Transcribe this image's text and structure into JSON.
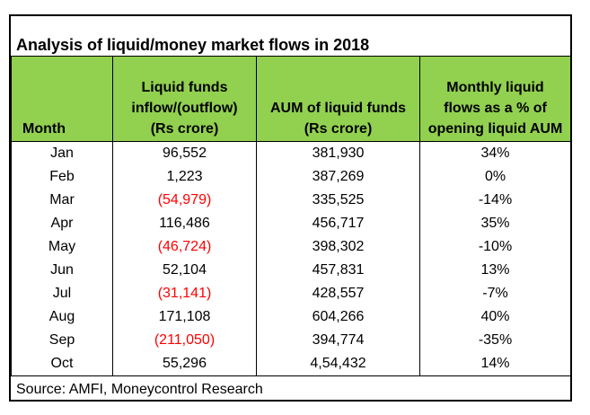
{
  "title": "Analysis of liquid/money market flows in 2018",
  "headers": {
    "month": "Month",
    "inflow": [
      "Liquid funds",
      "inflow/(outflow)",
      "(Rs crore)"
    ],
    "aum": [
      "AUM of liquid funds",
      "(Rs crore)"
    ],
    "pct": [
      "Monthly liquid",
      "flows as a % of",
      "opening liquid AUM"
    ]
  },
  "header_color": "#92d050",
  "negative_color": "#ff0000",
  "rows": [
    {
      "month": "Jan",
      "flow": "96,552",
      "negative": false,
      "aum": "381,930",
      "pct": "34%"
    },
    {
      "month": "Feb",
      "flow": "1,223",
      "negative": false,
      "aum": "387,269",
      "pct": "0%"
    },
    {
      "month": "Mar",
      "flow": "(54,979)",
      "negative": true,
      "aum": "335,525",
      "pct": "-14%"
    },
    {
      "month": "Apr",
      "flow": "116,486",
      "negative": false,
      "aum": "456,717",
      "pct": "35%"
    },
    {
      "month": "May",
      "flow": "(46,724)",
      "negative": true,
      "aum": "398,302",
      "pct": "-10%"
    },
    {
      "month": "Jun",
      "flow": "52,104",
      "negative": false,
      "aum": "457,831",
      "pct": "13%"
    },
    {
      "month": "Jul",
      "flow": "(31,141)",
      "negative": true,
      "aum": "428,557",
      "pct": "-7%"
    },
    {
      "month": "Aug",
      "flow": "171,108",
      "negative": false,
      "aum": "604,266",
      "pct": "40%"
    },
    {
      "month": "Sep",
      "flow": "(211,050)",
      "negative": true,
      "aum": "394,774",
      "pct": "-35%"
    },
    {
      "month": "Oct",
      "flow": "55,296",
      "negative": false,
      "aum": "4,54,432",
      "pct": "14%"
    }
  ],
  "source": "Source: AMFI, Moneycontrol Research",
  "chart_data": {
    "type": "table",
    "title": "Analysis of liquid/money market flows in 2018",
    "columns": [
      "Month",
      "Liquid funds inflow/(outflow) (Rs crore)",
      "AUM of liquid funds (Rs crore)",
      "Monthly liquid flows as a % of opening liquid AUM"
    ],
    "categories": [
      "Jan",
      "Feb",
      "Mar",
      "Apr",
      "May",
      "Jun",
      "Jul",
      "Aug",
      "Sep",
      "Oct"
    ],
    "series": [
      {
        "name": "Liquid funds inflow/(outflow) (Rs crore)",
        "values": [
          96552,
          1223,
          -54979,
          116486,
          -46724,
          52104,
          -31141,
          171108,
          -211050,
          55296
        ]
      },
      {
        "name": "AUM of liquid funds (Rs crore)",
        "values": [
          381930,
          387269,
          335525,
          456717,
          398302,
          457831,
          428557,
          604266,
          394774,
          454432
        ]
      },
      {
        "name": "Monthly liquid flows as a % of opening liquid AUM",
        "values": [
          34,
          0,
          -14,
          35,
          -10,
          13,
          -7,
          40,
          -35,
          14
        ]
      }
    ]
  }
}
